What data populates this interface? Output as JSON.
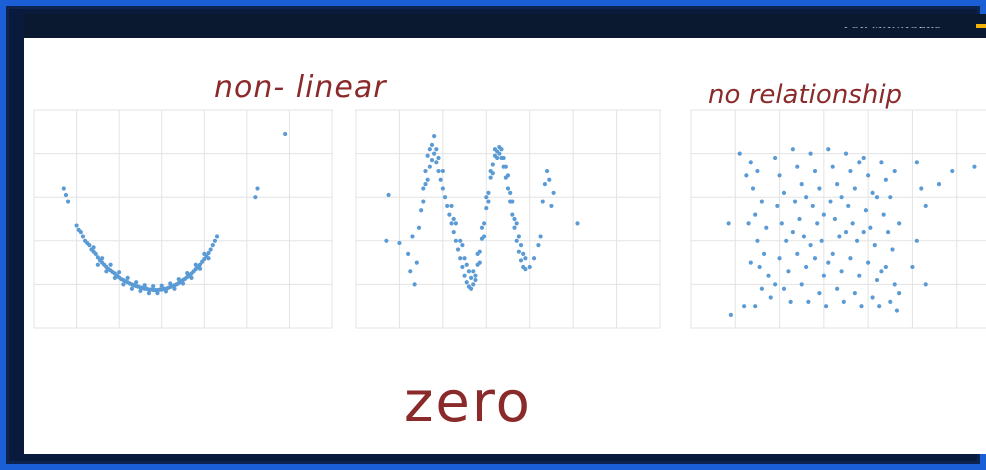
{
  "header": {
    "brand_text": "FOR MANAGERS",
    "accent_color": "#f2b40c"
  },
  "annotations": {
    "nonlinear_title": "non- linear",
    "no_relationship_title": "no relationship",
    "zero_label": "zero"
  },
  "colors": {
    "point": "#5b9bd5",
    "grid": "#e3e3e3",
    "ink": "#8a2a2a",
    "frame": "#1a5fd6"
  },
  "chart_data": [
    {
      "type": "scatter",
      "title": "",
      "xlim": [
        0,
        7
      ],
      "ylim": [
        0,
        5
      ],
      "grid": true,
      "points": [
        [
          0.7,
          3.2
        ],
        [
          0.75,
          3.05
        ],
        [
          0.8,
          2.9
        ],
        [
          1.0,
          2.35
        ],
        [
          1.05,
          2.25
        ],
        [
          1.1,
          2.2
        ],
        [
          1.15,
          2.1
        ],
        [
          1.2,
          2.0
        ],
        [
          1.25,
          1.95
        ],
        [
          1.3,
          1.9
        ],
        [
          1.35,
          1.8
        ],
        [
          1.4,
          1.75
        ],
        [
          1.45,
          1.7
        ],
        [
          1.5,
          1.62
        ],
        [
          1.55,
          1.55
        ],
        [
          1.6,
          1.5
        ],
        [
          1.65,
          1.45
        ],
        [
          1.7,
          1.4
        ],
        [
          1.75,
          1.35
        ],
        [
          1.8,
          1.32
        ],
        [
          1.85,
          1.28
        ],
        [
          1.9,
          1.25
        ],
        [
          1.95,
          1.2
        ],
        [
          2.0,
          1.16
        ],
        [
          2.05,
          1.12
        ],
        [
          2.1,
          1.1
        ],
        [
          2.15,
          1.07
        ],
        [
          2.2,
          1.05
        ],
        [
          2.25,
          1.02
        ],
        [
          2.3,
          1.0
        ],
        [
          2.35,
          0.98
        ],
        [
          2.4,
          0.96
        ],
        [
          2.45,
          0.95
        ],
        [
          2.5,
          0.93
        ],
        [
          2.55,
          0.92
        ],
        [
          2.6,
          0.9
        ],
        [
          2.65,
          0.9
        ],
        [
          2.7,
          0.88
        ],
        [
          2.75,
          0.88
        ],
        [
          2.8,
          0.87
        ],
        [
          2.85,
          0.87
        ],
        [
          2.9,
          0.87
        ],
        [
          2.95,
          0.88
        ],
        [
          3.0,
          0.88
        ],
        [
          3.05,
          0.9
        ],
        [
          3.1,
          0.9
        ],
        [
          3.15,
          0.92
        ],
        [
          3.2,
          0.94
        ],
        [
          3.25,
          0.96
        ],
        [
          3.3,
          0.98
        ],
        [
          3.35,
          1.0
        ],
        [
          3.4,
          1.03
        ],
        [
          3.45,
          1.06
        ],
        [
          3.5,
          1.1
        ],
        [
          3.55,
          1.13
        ],
        [
          3.6,
          1.17
        ],
        [
          3.65,
          1.2
        ],
        [
          3.7,
          1.25
        ],
        [
          3.75,
          1.3
        ],
        [
          3.8,
          1.35
        ],
        [
          3.85,
          1.4
        ],
        [
          3.9,
          1.45
        ],
        [
          3.95,
          1.52
        ],
        [
          4.0,
          1.58
        ],
        [
          4.05,
          1.65
        ],
        [
          4.1,
          1.72
        ],
        [
          4.15,
          1.8
        ],
        [
          4.2,
          1.9
        ],
        [
          4.25,
          2.0
        ],
        [
          4.3,
          2.1
        ],
        [
          1.5,
          1.45
        ],
        [
          1.7,
          1.3
        ],
        [
          1.9,
          1.15
        ],
        [
          2.1,
          1.0
        ],
        [
          2.3,
          0.9
        ],
        [
          2.5,
          0.85
        ],
        [
          2.7,
          0.8
        ],
        [
          2.9,
          0.8
        ],
        [
          3.1,
          0.84
        ],
        [
          3.3,
          0.9
        ],
        [
          3.5,
          1.02
        ],
        [
          3.7,
          1.15
        ],
        [
          3.9,
          1.36
        ],
        [
          4.1,
          1.6
        ],
        [
          1.4,
          1.85
        ],
        [
          1.6,
          1.6
        ],
        [
          1.8,
          1.45
        ],
        [
          2.0,
          1.28
        ],
        [
          2.2,
          1.15
        ],
        [
          2.4,
          1.05
        ],
        [
          2.6,
          0.98
        ],
        [
          2.8,
          0.96
        ],
        [
          3.0,
          0.97
        ],
        [
          3.2,
          1.02
        ],
        [
          3.4,
          1.12
        ],
        [
          3.6,
          1.26
        ],
        [
          3.8,
          1.45
        ],
        [
          4.0,
          1.7
        ],
        [
          5.25,
          3.2
        ],
        [
          5.2,
          3.0
        ],
        [
          5.9,
          4.45
        ]
      ]
    },
    {
      "type": "scatter",
      "title": "",
      "xlim": [
        0,
        7
      ],
      "ylim": [
        0,
        5
      ],
      "grid": true,
      "points": [
        [
          0.75,
          3.05
        ],
        [
          0.7,
          2.0
        ],
        [
          1.0,
          1.95
        ],
        [
          1.2,
          1.7
        ],
        [
          1.3,
          2.1
        ],
        [
          1.25,
          1.3
        ],
        [
          1.35,
          1.0
        ],
        [
          1.4,
          1.5
        ],
        [
          1.45,
          2.3
        ],
        [
          1.5,
          2.7
        ],
        [
          1.55,
          3.2
        ],
        [
          1.6,
          3.6
        ],
        [
          1.65,
          3.95
        ],
        [
          1.7,
          4.1
        ],
        [
          1.75,
          4.2
        ],
        [
          1.8,
          4.0
        ],
        [
          1.8,
          4.4
        ],
        [
          1.85,
          3.8
        ],
        [
          1.9,
          3.6
        ],
        [
          1.95,
          3.4
        ],
        [
          2.0,
          3.2
        ],
        [
          2.05,
          3.0
        ],
        [
          2.1,
          2.8
        ],
        [
          2.15,
          2.6
        ],
        [
          2.2,
          2.4
        ],
        [
          2.25,
          2.2
        ],
        [
          2.3,
          2.0
        ],
        [
          2.35,
          1.8
        ],
        [
          2.4,
          1.6
        ],
        [
          2.45,
          1.4
        ],
        [
          2.5,
          1.2
        ],
        [
          2.55,
          1.05
        ],
        [
          2.6,
          0.95
        ],
        [
          2.65,
          0.9
        ],
        [
          2.7,
          1.0
        ],
        [
          2.75,
          1.2
        ],
        [
          2.8,
          1.45
        ],
        [
          2.85,
          1.75
        ],
        [
          2.9,
          2.05
        ],
        [
          2.95,
          2.4
        ],
        [
          3.0,
          2.75
        ],
        [
          3.05,
          3.1
        ],
        [
          3.1,
          3.45
        ],
        [
          3.15,
          3.75
        ],
        [
          3.2,
          3.95
        ],
        [
          3.25,
          4.05
        ],
        [
          3.3,
          4.0
        ],
        [
          3.35,
          3.9
        ],
        [
          3.4,
          3.7
        ],
        [
          3.45,
          3.45
        ],
        [
          3.5,
          3.2
        ],
        [
          3.55,
          2.9
        ],
        [
          3.6,
          2.6
        ],
        [
          3.65,
          2.3
        ],
        [
          3.7,
          2.0
        ],
        [
          3.75,
          1.75
        ],
        [
          3.8,
          1.55
        ],
        [
          3.85,
          1.4
        ],
        [
          3.9,
          1.35
        ],
        [
          4.0,
          1.4
        ],
        [
          4.1,
          1.6
        ],
        [
          4.2,
          1.9
        ],
        [
          4.25,
          2.1
        ],
        [
          1.6,
          3.3
        ],
        [
          1.7,
          3.7
        ],
        [
          1.9,
          3.9
        ],
        [
          2.0,
          3.6
        ],
        [
          2.2,
          2.8
        ],
        [
          2.3,
          2.4
        ],
        [
          2.4,
          2.0
        ],
        [
          2.5,
          1.6
        ],
        [
          2.6,
          1.3
        ],
        [
          2.7,
          1.3
        ],
        [
          2.8,
          1.7
        ],
        [
          2.9,
          2.3
        ],
        [
          3.0,
          3.0
        ],
        [
          3.1,
          3.6
        ],
        [
          3.2,
          4.1
        ],
        [
          3.3,
          4.15
        ],
        [
          3.4,
          3.9
        ],
        [
          3.5,
          3.5
        ],
        [
          3.6,
          2.9
        ],
        [
          3.7,
          2.4
        ],
        [
          3.8,
          1.9
        ],
        [
          3.9,
          1.6
        ],
        [
          1.55,
          2.9
        ],
        [
          1.65,
          3.4
        ],
        [
          1.75,
          3.85
        ],
        [
          1.85,
          4.1
        ],
        [
          2.25,
          2.5
        ],
        [
          2.45,
          1.9
        ],
        [
          2.55,
          1.45
        ],
        [
          2.65,
          1.15
        ],
        [
          2.75,
          1.1
        ],
        [
          2.85,
          1.5
        ],
        [
          2.95,
          2.1
        ],
        [
          3.05,
          2.9
        ],
        [
          3.15,
          3.55
        ],
        [
          3.25,
          3.9
        ],
        [
          3.35,
          4.1
        ],
        [
          3.45,
          3.7
        ],
        [
          3.55,
          3.1
        ],
        [
          3.65,
          2.5
        ],
        [
          3.75,
          2.1
        ],
        [
          3.85,
          1.7
        ],
        [
          4.3,
          2.9
        ],
        [
          4.35,
          3.3
        ],
        [
          4.4,
          3.6
        ],
        [
          4.45,
          3.4
        ],
        [
          4.5,
          2.8
        ],
        [
          4.55,
          3.1
        ],
        [
          5.1,
          2.4
        ]
      ]
    },
    {
      "type": "scatter",
      "title": "",
      "xlim": [
        0,
        7
      ],
      "ylim": [
        0,
        5
      ],
      "grid": true,
      "points": [
        [
          1.1,
          4.0
        ],
        [
          1.35,
          3.8
        ],
        [
          1.5,
          3.6
        ],
        [
          1.4,
          3.2
        ],
        [
          1.6,
          2.9
        ],
        [
          1.45,
          2.6
        ],
        [
          1.7,
          2.3
        ],
        [
          1.5,
          2.0
        ],
        [
          1.65,
          1.7
        ],
        [
          1.55,
          1.4
        ],
        [
          1.75,
          1.2
        ],
        [
          1.6,
          0.9
        ],
        [
          1.8,
          0.7
        ],
        [
          1.45,
          0.5
        ],
        [
          1.9,
          3.9
        ],
        [
          2.0,
          3.5
        ],
        [
          2.1,
          3.1
        ],
        [
          1.95,
          2.8
        ],
        [
          2.05,
          2.4
        ],
        [
          2.15,
          2.0
        ],
        [
          2.0,
          1.6
        ],
        [
          2.2,
          1.3
        ],
        [
          2.1,
          0.9
        ],
        [
          2.25,
          0.6
        ],
        [
          2.3,
          4.1
        ],
        [
          2.4,
          3.7
        ],
        [
          2.5,
          3.3
        ],
        [
          2.35,
          2.9
        ],
        [
          2.45,
          2.5
        ],
        [
          2.55,
          2.1
        ],
        [
          2.4,
          1.7
        ],
        [
          2.6,
          1.4
        ],
        [
          2.5,
          1.0
        ],
        [
          2.65,
          0.6
        ],
        [
          2.7,
          4.0
        ],
        [
          2.8,
          3.6
        ],
        [
          2.9,
          3.2
        ],
        [
          2.75,
          2.8
        ],
        [
          2.85,
          2.4
        ],
        [
          2.95,
          2.0
        ],
        [
          2.8,
          1.6
        ],
        [
          3.0,
          1.2
        ],
        [
          2.9,
          0.8
        ],
        [
          3.05,
          0.5
        ],
        [
          3.1,
          4.1
        ],
        [
          3.2,
          3.7
        ],
        [
          3.3,
          3.3
        ],
        [
          3.15,
          2.9
        ],
        [
          3.25,
          2.5
        ],
        [
          3.35,
          2.1
        ],
        [
          3.2,
          1.7
        ],
        [
          3.4,
          1.3
        ],
        [
          3.3,
          0.9
        ],
        [
          3.45,
          0.6
        ],
        [
          3.5,
          4.0
        ],
        [
          3.6,
          3.6
        ],
        [
          3.7,
          3.2
        ],
        [
          3.55,
          2.8
        ],
        [
          3.65,
          2.4
        ],
        [
          3.75,
          2.0
        ],
        [
          3.6,
          1.6
        ],
        [
          3.8,
          1.2
        ],
        [
          3.7,
          0.8
        ],
        [
          3.85,
          0.5
        ],
        [
          3.9,
          3.9
        ],
        [
          4.0,
          3.5
        ],
        [
          4.1,
          3.1
        ],
        [
          3.95,
          2.7
        ],
        [
          4.05,
          2.3
        ],
        [
          4.15,
          1.9
        ],
        [
          4.0,
          1.5
        ],
        [
          4.2,
          1.1
        ],
        [
          4.1,
          0.7
        ],
        [
          4.25,
          0.5
        ],
        [
          4.3,
          3.8
        ],
        [
          4.4,
          3.4
        ],
        [
          4.5,
          3.0
        ],
        [
          4.35,
          2.6
        ],
        [
          4.45,
          2.2
        ],
        [
          4.55,
          1.8
        ],
        [
          4.4,
          1.4
        ],
        [
          4.6,
          1.0
        ],
        [
          4.5,
          0.6
        ],
        [
          4.65,
          0.4
        ],
        [
          1.25,
          3.5
        ],
        [
          1.3,
          2.4
        ],
        [
          1.35,
          1.5
        ],
        [
          1.2,
          0.5
        ],
        [
          1.9,
          1.0
        ],
        [
          2.3,
          2.2
        ],
        [
          2.6,
          3.0
        ],
        [
          2.7,
          1.9
        ],
        [
          3.0,
          2.6
        ],
        [
          3.1,
          1.5
        ],
        [
          3.4,
          3.0
        ],
        [
          3.5,
          2.2
        ],
        [
          3.8,
          3.8
        ],
        [
          3.9,
          2.2
        ],
        [
          4.2,
          3.0
        ],
        [
          4.3,
          1.3
        ],
        [
          4.6,
          3.6
        ],
        [
          4.7,
          2.4
        ],
        [
          4.7,
          0.8
        ],
        [
          5.1,
          3.8
        ],
        [
          5.2,
          3.2
        ],
        [
          5.1,
          2.0
        ],
        [
          5.3,
          1.0
        ],
        [
          5.6,
          3.3
        ],
        [
          5.9,
          3.6
        ],
        [
          6.4,
          3.7
        ],
        [
          0.9,
          0.3
        ],
        [
          0.85,
          2.4
        ],
        [
          5.3,
          2.8
        ],
        [
          5.0,
          1.4
        ]
      ]
    }
  ]
}
